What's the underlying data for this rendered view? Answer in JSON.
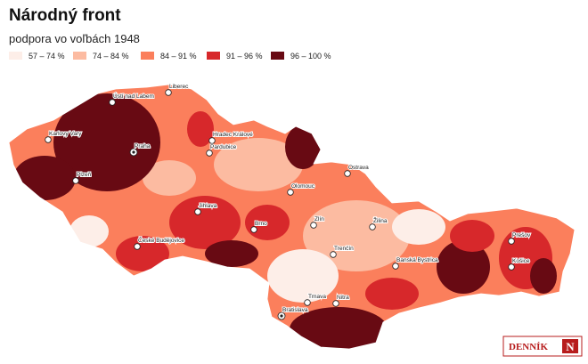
{
  "header": {
    "title": "Národný front",
    "subtitle": "podpora vo voľbách 1948"
  },
  "legend": [
    {
      "label": "57 – 74 %",
      "color": "#fdeee8"
    },
    {
      "label": "74 – 84 %",
      "color": "#fcbba1"
    },
    {
      "label": "84 – 91 %",
      "color": "#fb7f5c"
    },
    {
      "label": "91 – 96 %",
      "color": "#d7282b"
    },
    {
      "label": "96 – 100 %",
      "color": "#680a13"
    }
  ],
  "cities": [
    "Ústí nad Labem",
    "Liberec",
    "Karlovy Vary",
    "Praha",
    "Hradec Králové",
    "Pardubice",
    "Plzeň",
    "Ostrava",
    "Olomouc",
    "Jihlava",
    "Brno",
    "Zlín",
    "Žilina",
    "České Budějovice",
    "Trenčín",
    "Banská Bystrica",
    "Prešov",
    "Košice",
    "Trnava",
    "Nitra",
    "Bratislava"
  ],
  "logo": {
    "text": "DENNÍK",
    "mark": "N"
  }
}
